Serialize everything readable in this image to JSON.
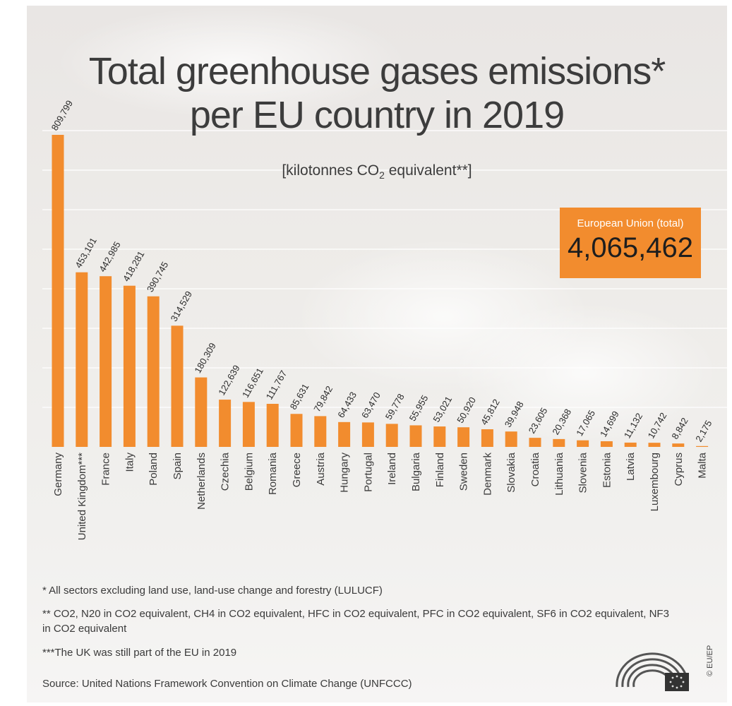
{
  "title_line1": "Total greenhouse gases emissions*",
  "title_line2": "per EU country in 2019",
  "unit_prefix": "[kilotonnes CO",
  "unit_sub": "2",
  "unit_suffix": " equivalent**]",
  "total": {
    "label": "European Union (total)",
    "value": "4,065,462"
  },
  "footnotes": {
    "note1": "*  All sectors excluding land use, land-use change and forestry (LULUCF)",
    "note2": "** CO2, N20 in CO2 equivalent, CH4 in CO2 equivalent, HFC in CO2 equivalent, PFC in CO2 equivalent, SF6 in CO2 equivalent, NF3 in CO2 equivalent",
    "note3": "***The UK was still part of the EU in 2019",
    "source": "Source: United Nations Framework Convention on Climate Change (UNFCCC)"
  },
  "copyright": "© EU/EP",
  "colors": {
    "bar": "#f28c2e",
    "text": "#3c3c3c",
    "grid": "#ffffff"
  },
  "chart_data": {
    "type": "bar",
    "title": "Total greenhouse gases emissions* per EU country in 2019",
    "ylabel": "[kilotonnes CO2 equivalent**]",
    "categories": [
      "Germany",
      "United Kingdom***",
      "France",
      "Italy",
      "Poland",
      "Spain",
      "Netherlands",
      "Czechia",
      "Belgium",
      "Romania",
      "Greece",
      "Austria",
      "Hungary",
      "Portugal",
      "Ireland",
      "Bulgaria",
      "Finland",
      "Sweden",
      "Denmark",
      "Slovakia",
      "Croatia",
      "Lithuania",
      "Slovenia",
      "Estonia",
      "Latvia",
      "Luxembourg",
      "Cyprus",
      "Malta"
    ],
    "values": [
      809799,
      453101,
      442985,
      418281,
      390745,
      314529,
      180309,
      122639,
      116651,
      111767,
      85631,
      79842,
      64433,
      63470,
      59778,
      55955,
      53021,
      50920,
      45812,
      39948,
      23605,
      20368,
      17065,
      14699,
      11132,
      10742,
      8842,
      2175
    ],
    "value_labels": [
      "809,799",
      "453,101",
      "442,985",
      "418,281",
      "390,745",
      "314,529",
      "180,309",
      "122,639",
      "116,651",
      "111,767",
      "85,631",
      "79,842",
      "64,433",
      "63,470",
      "59,778",
      "55,955",
      "53,021",
      "50,920",
      "45,812",
      "39,948",
      "23,605",
      "20,368",
      "17,065",
      "14,699",
      "11,132",
      "10,742",
      "8,842",
      "2,175"
    ],
    "ylim": [
      0,
      809799
    ],
    "grid": true
  }
}
